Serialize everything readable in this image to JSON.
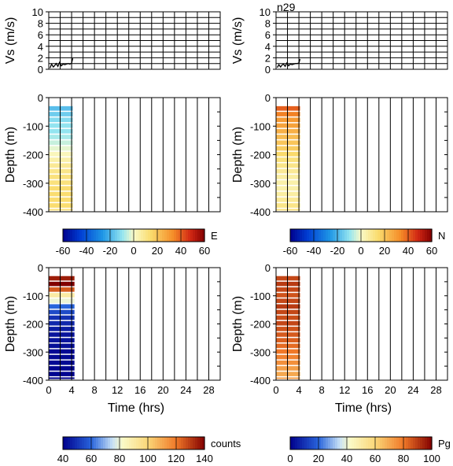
{
  "chart_data": [
    {
      "id": "vs-left",
      "type": "line",
      "xlim": [
        0,
        30
      ],
      "ylim": [
        0,
        10
      ],
      "ylabel": "Vs (m/s)",
      "yticks": [
        0,
        2,
        4,
        6,
        8,
        10
      ],
      "x": [
        0.2,
        0.5,
        0.8,
        1.0,
        1.3,
        1.6,
        1.9,
        2.2,
        2.5,
        2.8,
        3.1,
        3.4,
        3.7,
        4.0,
        4.2
      ],
      "y": [
        0.2,
        0.9,
        0.4,
        0.6,
        1.0,
        0.5,
        1.2,
        0.6,
        0.9,
        0.8,
        0.9,
        1.0,
        0.9,
        1.1,
        1.9
      ]
    },
    {
      "id": "vs-right",
      "type": "line",
      "title": "n29",
      "xlim": [
        0,
        30
      ],
      "ylim": [
        0,
        10
      ],
      "ylabel": "Vs (m/s)",
      "yticks": [
        0,
        2,
        4,
        6,
        8,
        10
      ],
      "x": [
        0.2,
        0.5,
        0.8,
        1.0,
        1.3,
        1.6,
        1.9,
        2.2,
        2.5,
        2.8,
        3.1,
        3.4,
        3.7,
        4.0,
        4.2
      ],
      "y": [
        0.3,
        0.8,
        0.4,
        0.7,
        0.9,
        0.5,
        1.1,
        0.6,
        0.9,
        0.8,
        0.9,
        1.0,
        1.0,
        1.1,
        1.8
      ]
    },
    {
      "id": "heat-e",
      "type": "heatmap",
      "xlim": [
        0,
        30
      ],
      "ylim": [
        -400,
        0
      ],
      "ylabel": "Depth (m)",
      "yticks": [
        0,
        -100,
        -200,
        -300,
        -400
      ],
      "x_extent": [
        0,
        4.2
      ],
      "depth": [
        -40,
        -60,
        -80,
        -100,
        -120,
        -140,
        -160,
        -180,
        -200,
        -220,
        -240,
        -260,
        -280,
        -300,
        -320,
        -340,
        -360,
        -380,
        -400
      ],
      "values": [
        -18,
        -15,
        -12,
        -10,
        -10,
        -8,
        -5,
        -2,
        2,
        5,
        8,
        10,
        12,
        12,
        14,
        14,
        14,
        14,
        12
      ],
      "colorbar": {
        "label": "E",
        "min": -60,
        "max": 60,
        "ticks": [
          -60,
          -40,
          -20,
          0,
          20,
          40,
          60
        ]
      }
    },
    {
      "id": "heat-n",
      "type": "heatmap",
      "xlim": [
        0,
        30
      ],
      "ylim": [
        -400,
        0
      ],
      "ylabel": "Depth (m)",
      "yticks": [
        0,
        -100,
        -200,
        -300,
        -400
      ],
      "x_extent": [
        0,
        4.2
      ],
      "depth": [
        -40,
        -60,
        -80,
        -100,
        -120,
        -140,
        -160,
        -180,
        -200,
        -220,
        -240,
        -260,
        -280,
        -300,
        -320,
        -340,
        -360,
        -380,
        -400
      ],
      "values": [
        40,
        35,
        30,
        28,
        25,
        22,
        20,
        18,
        15,
        12,
        10,
        8,
        6,
        5,
        5,
        6,
        8,
        10,
        12
      ],
      "colorbar": {
        "label": "N",
        "min": -60,
        "max": 60,
        "ticks": [
          -60,
          -40,
          -20,
          0,
          20,
          40,
          60
        ]
      }
    },
    {
      "id": "heat-counts",
      "type": "heatmap",
      "xlim": [
        0,
        30
      ],
      "ylim": [
        -400,
        0
      ],
      "xlabel": "Time (hrs)",
      "ylabel": "Depth (m)",
      "xticks": [
        0,
        4,
        8,
        12,
        16,
        20,
        24,
        28
      ],
      "yticks": [
        0,
        -100,
        -200,
        -300,
        -400
      ],
      "x_extent": [
        0,
        4.5
      ],
      "depth": [
        -40,
        -60,
        -80,
        -100,
        -120,
        -140,
        -160,
        -180,
        -200,
        -220,
        -240,
        -260,
        -280,
        -300,
        -320,
        -340,
        -360,
        -380,
        -400
      ],
      "values": [
        135,
        140,
        125,
        90,
        80,
        60,
        55,
        50,
        48,
        46,
        44,
        44,
        43,
        42,
        42,
        42,
        41,
        41,
        40
      ],
      "colorbar": {
        "label": "counts",
        "min": 40,
        "max": 140,
        "ticks": [
          40,
          60,
          80,
          100,
          120,
          140
        ]
      }
    },
    {
      "id": "heat-pg",
      "type": "heatmap",
      "xlim": [
        0,
        30
      ],
      "ylim": [
        -400,
        0
      ],
      "xlabel": "Time (hrs)",
      "ylabel": "Depth (m)",
      "xticks": [
        0,
        4,
        8,
        12,
        16,
        20,
        24,
        28
      ],
      "yticks": [
        0,
        -100,
        -200,
        -300,
        -400
      ],
      "x_extent": [
        0,
        4.2
      ],
      "depth": [
        -40,
        -60,
        -80,
        -100,
        -120,
        -140,
        -160,
        -180,
        -200,
        -220,
        -240,
        -260,
        -280,
        -300,
        -320,
        -340,
        -360,
        -380,
        -400
      ],
      "values": [
        88,
        90,
        88,
        86,
        88,
        90,
        88,
        87,
        88,
        86,
        85,
        84,
        82,
        80,
        78,
        75,
        72,
        70,
        72
      ],
      "colorbar": {
        "label": "Pg",
        "min": 0,
        "max": 100,
        "ticks": [
          0,
          20,
          40,
          60,
          80,
          100
        ]
      }
    }
  ]
}
